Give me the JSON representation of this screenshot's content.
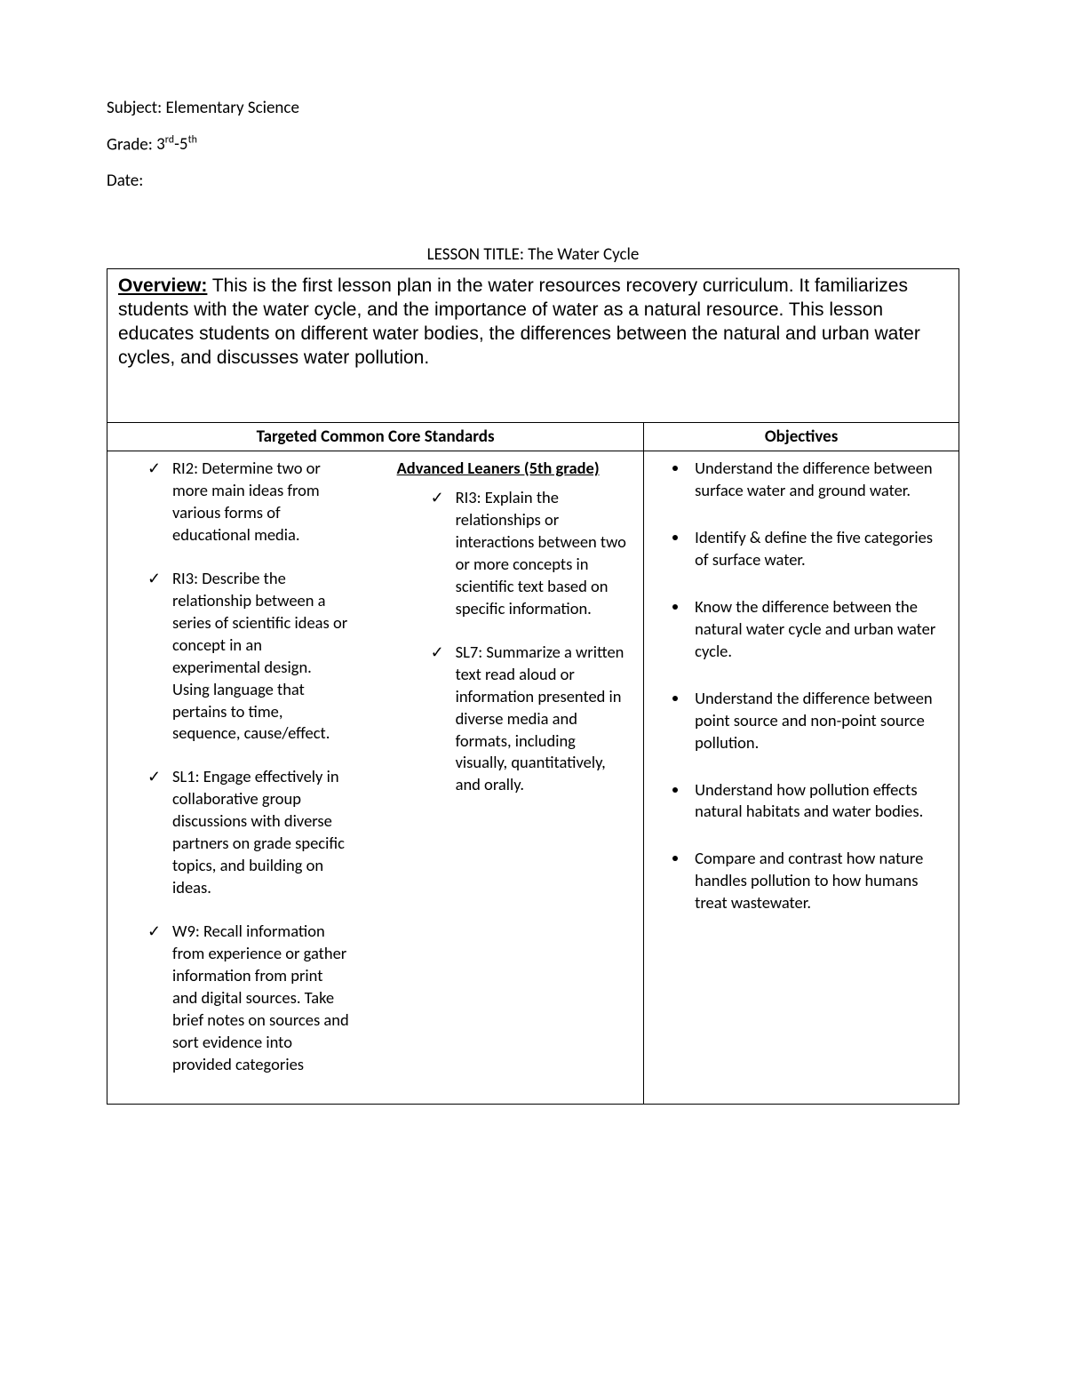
{
  "header": {
    "subject_label": "Subject:",
    "subject_value": "Elementary Science",
    "grade_label": "Grade:",
    "grade_value_html": "3<sup>rd</sup>-5<sup>th</sup>",
    "date_label": "Date:",
    "date_value": ""
  },
  "lesson_title_prefix": "LESSON TITLE:",
  "lesson_title": "The Water Cycle",
  "overview": {
    "label": "Overview:",
    "text": "This is the first lesson plan in the water resources recovery curriculum. It familiarizes students with the water cycle, and the importance of water as a natural resource. This lesson educates students on different water bodies, the differences between the natural and urban water cycles, and discusses water pollution."
  },
  "table": {
    "standards_header": "Targeted Common Core Standards",
    "objectives_header": "Objectives",
    "standards_col_width": "63%",
    "objectives_col_width": "37%",
    "standards_left": [
      "RI2: Determine two or more main ideas from various forms of educational media.",
      "RI3: Describe the relationship between a series of scientific ideas or concept in an experimental design. Using language that pertains to time, sequence, cause/effect.",
      "SL1: Engage effectively in collaborative group discussions with diverse partners on grade specific topics, and building on ideas.",
      "W9: Recall information from experience or gather information from print and digital sources. Take brief notes on sources and sort evidence into provided categories"
    ],
    "advanced_header": "Advanced Leaners (5th grade)",
    "standards_right": [
      "RI3: Explain the relationships or interactions between two or more concepts in scientific text based on specific information.",
      "SL7: Summarize a written text read aloud or information presented in diverse media and formats, including visually, quantitatively, and orally."
    ],
    "objectives": [
      "Understand the difference between surface water and ground water.",
      "Identify & define the five categories of surface water.",
      "Know the difference between the natural water cycle and urban water cycle.",
      "Understand the difference between point source and non-point source pollution.",
      "Understand how pollution effects natural habitats and water bodies.",
      "Compare and contrast how nature handles pollution to how humans treat wastewater."
    ]
  },
  "styling": {
    "page_bg": "#ffffff",
    "text_color": "#000000",
    "border_color": "#000000",
    "body_font": "Calibri, Arial, sans-serif",
    "overview_font": "Arial, Helvetica, sans-serif",
    "base_fontsize": 19,
    "overview_fontsize": 21,
    "list_fontsize": 18.5
  }
}
